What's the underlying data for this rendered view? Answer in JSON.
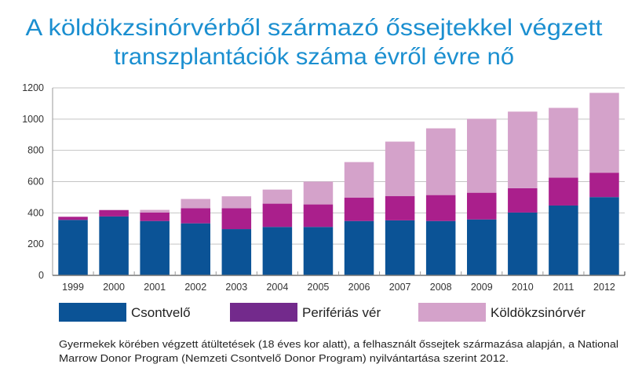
{
  "chart_data": {
    "type": "bar",
    "stacked": true,
    "title": [
      "A köldökzsinórvérből származó őssejtekkel végzett",
      "transzplantációk száma évről évre nő"
    ],
    "categories": [
      "1999",
      "2000",
      "2001",
      "2002",
      "2003",
      "2004",
      "2005",
      "2006",
      "2007",
      "2008",
      "2009",
      "2010",
      "2011",
      "2012"
    ],
    "series": [
      {
        "name": "Csontvelő",
        "color": "#0b5396",
        "legend_color": "#0b5396",
        "values": [
          355,
          377,
          348,
          333,
          296,
          310,
          310,
          348,
          352,
          348,
          358,
          402,
          447,
          501
        ]
      },
      {
        "name": "Perifériás vér",
        "color": "#aa1f8c",
        "legend_color": "#732a8c",
        "values": [
          20,
          40,
          54,
          97,
          134,
          149,
          144,
          149,
          155,
          166,
          171,
          156,
          178,
          156
        ]
      },
      {
        "name": "Köldökzsinórvér",
        "color": "#d4a2ca",
        "legend_color": "#d4a2ca",
        "values": [
          0,
          3,
          17,
          59,
          76,
          90,
          146,
          228,
          349,
          427,
          473,
          490,
          447,
          511
        ]
      }
    ],
    "ylim": [
      0,
      1200
    ],
    "yticks": [
      "0",
      "200",
      "400",
      "600",
      "800",
      "1000",
      "1200"
    ],
    "grid": true,
    "legend_placement": "bottom",
    "xlabel": "",
    "ylabel": "",
    "footnote": [
      "Gyermekek körében végzett átültetések (18 éves kor alatt), a felhasznált őssejtek származása alapján, a National",
      "Marrow Donor Program (Nemzeti Csontvelő Donor Program) nyilvántartása szerint 2012."
    ]
  }
}
